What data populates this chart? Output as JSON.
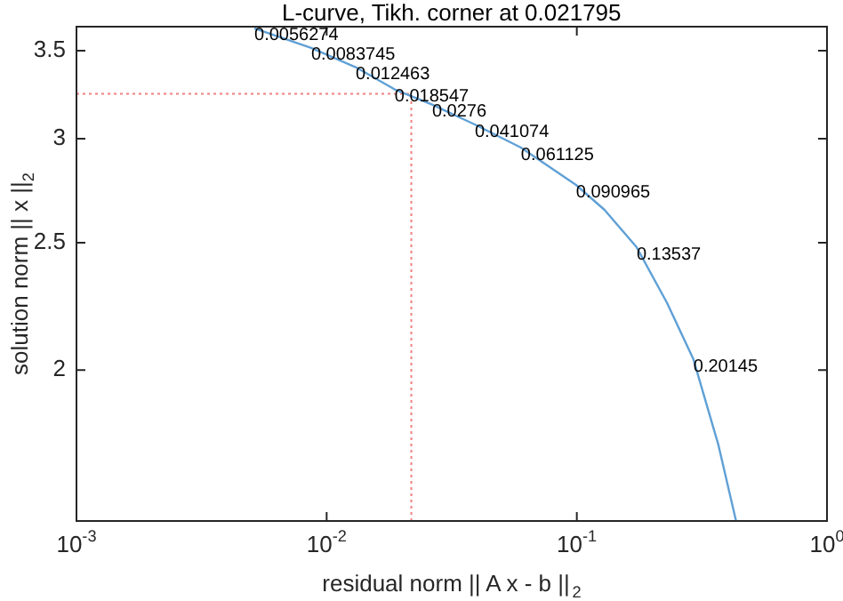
{
  "chart_data": {
    "type": "line",
    "title": "L-curve, Tikh. corner at 0.021795",
    "xlabel": "residual norm || A x - b ||$_{2}$",
    "ylabel": "solution norm || x ||$_{2}$",
    "x": [
      0.00514,
      0.00867,
      0.01306,
      0.0187,
      0.0264,
      0.0391,
      0.0598,
      0.0993,
      0.129,
      0.1734,
      0.229,
      0.2924,
      0.368,
      0.433
    ],
    "values": [
      3.64,
      3.517,
      3.4,
      3.27,
      3.184,
      3.075,
      2.953,
      2.766,
      2.648,
      2.48,
      2.251,
      2.038,
      1.754,
      1.535
    ],
    "color": "#5fa0d6",
    "log": "xy",
    "xlim": [
      0.001,
      1
    ],
    "ylim": [
      1.535,
      3.65
    ],
    "xticks": [
      {
        "value": 0.001,
        "label": "10$^{-3}$"
      },
      {
        "value": 0.01,
        "label": "10$^{-2}$"
      },
      {
        "value": 0.1,
        "label": "10$^{-1}$"
      },
      {
        "value": 1,
        "label": "10$^{0}$"
      }
    ],
    "yticks": [
      2,
      2.5,
      3,
      3.5
    ],
    "legend": false,
    "marker": "none",
    "line_style": "solid",
    "ref_lines": [
      {
        "axis": "x",
        "value": 0.021795,
        "color": "#f08080",
        "line_style": "dotted"
      },
      {
        "axis": "y",
        "value": 3.245,
        "color": "#f08080",
        "line_style": "dotted"
      }
    ],
    "annotations": [
      {
        "text": "0.0056274",
        "x": 0.00514,
        "y": 3.64
      },
      {
        "text": "0.0083745",
        "x": 0.00867,
        "y": 3.517
      },
      {
        "text": "0.012463",
        "x": 0.01306,
        "y": 3.4
      },
      {
        "text": "0.018547",
        "x": 0.0187,
        "y": 3.27
      },
      {
        "text": "0.0276",
        "x": 0.0264,
        "y": 3.184
      },
      {
        "text": "0.041074",
        "x": 0.0391,
        "y": 3.075
      },
      {
        "text": "0.061125",
        "x": 0.0598,
        "y": 2.953
      },
      {
        "text": "0.090965",
        "x": 0.0993,
        "y": 2.766
      },
      {
        "text": "0.13537",
        "x": 0.1734,
        "y": 2.48
      },
      {
        "text": "0.20145",
        "x": 0.2924,
        "y": 2.038
      }
    ]
  }
}
